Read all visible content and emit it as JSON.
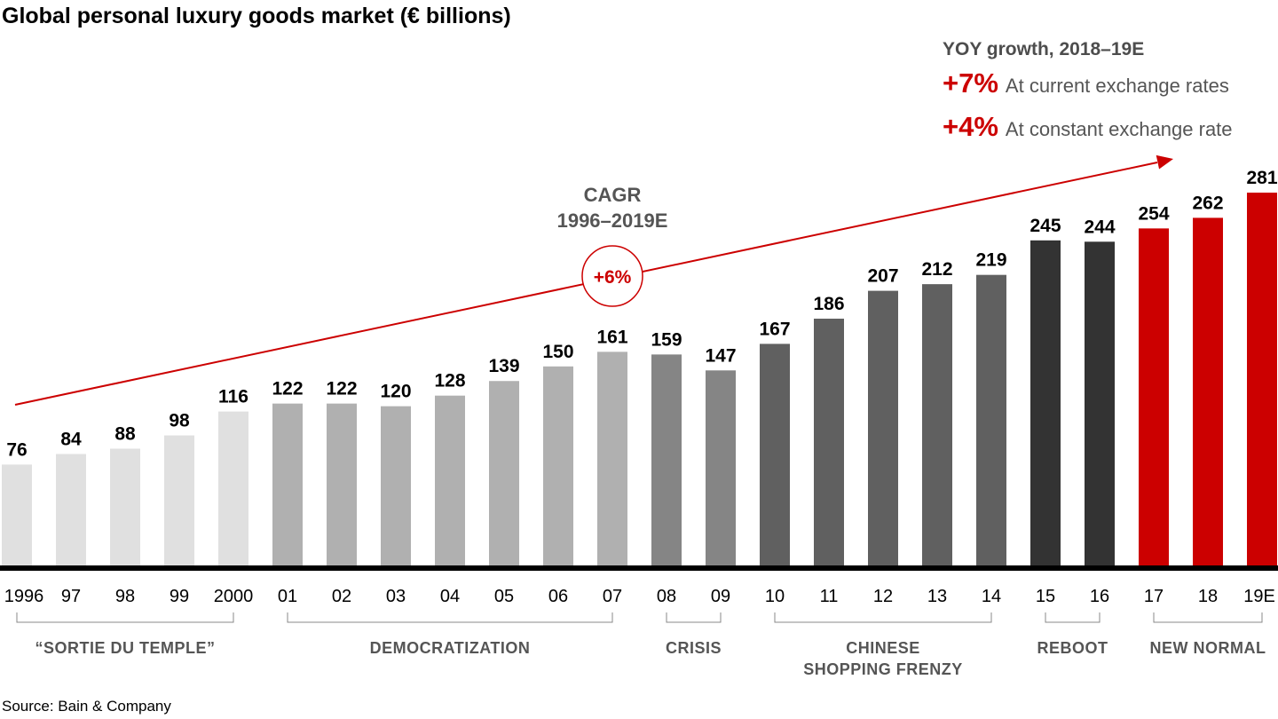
{
  "chart_data": {
    "type": "bar",
    "title": "Global personal luxury goods market (€ billions)",
    "xlabel": "",
    "ylabel": "",
    "ylim": [
      0,
      281
    ],
    "grid": false,
    "categories": [
      "1996",
      "97",
      "98",
      "99",
      "2000",
      "01",
      "02",
      "03",
      "04",
      "05",
      "06",
      "07",
      "08",
      "09",
      "10",
      "11",
      "12",
      "13",
      "14",
      "15",
      "16",
      "17",
      "18",
      "19E"
    ],
    "values": [
      76,
      84,
      88,
      98,
      116,
      122,
      122,
      120,
      128,
      139,
      150,
      161,
      159,
      147,
      167,
      186,
      207,
      212,
      219,
      245,
      244,
      254,
      262,
      281
    ],
    "periods": [
      {
        "label": "“SORTIE DU TEMPLE”",
        "start": 0,
        "end": 4,
        "color": "#e0e0e0"
      },
      {
        "label": "DEMOCRATIZATION",
        "start": 5,
        "end": 11,
        "color": "#b0b0b0"
      },
      {
        "label": "CRISIS",
        "start": 12,
        "end": 13,
        "color": "#858585"
      },
      {
        "label": "CHINESE\nSHOPPING FRENZY",
        "start": 14,
        "end": 18,
        "color": "#606060"
      },
      {
        "label": "REBOOT",
        "start": 19,
        "end": 20,
        "color": "#333333"
      },
      {
        "label": "NEW NORMAL",
        "start": 21,
        "end": 23,
        "color": "#cc0000"
      }
    ],
    "annotations": {
      "cagr_label_line1": "CAGR",
      "cagr_label_line2": "1996–2019E",
      "cagr_value": "+6%",
      "yoy_heading": "YOY growth, 2018–19E",
      "yoy_rows": [
        {
          "value": "+7%",
          "label": "At current exchange rates"
        },
        {
          "value": "+4%",
          "label": "At constant exchange rate"
        }
      ]
    },
    "source": "Source: Bain & Company"
  },
  "colors": {
    "accent": "#cc0000",
    "axis": "#000000",
    "bracket": "#888888",
    "period_label": "#555555"
  }
}
